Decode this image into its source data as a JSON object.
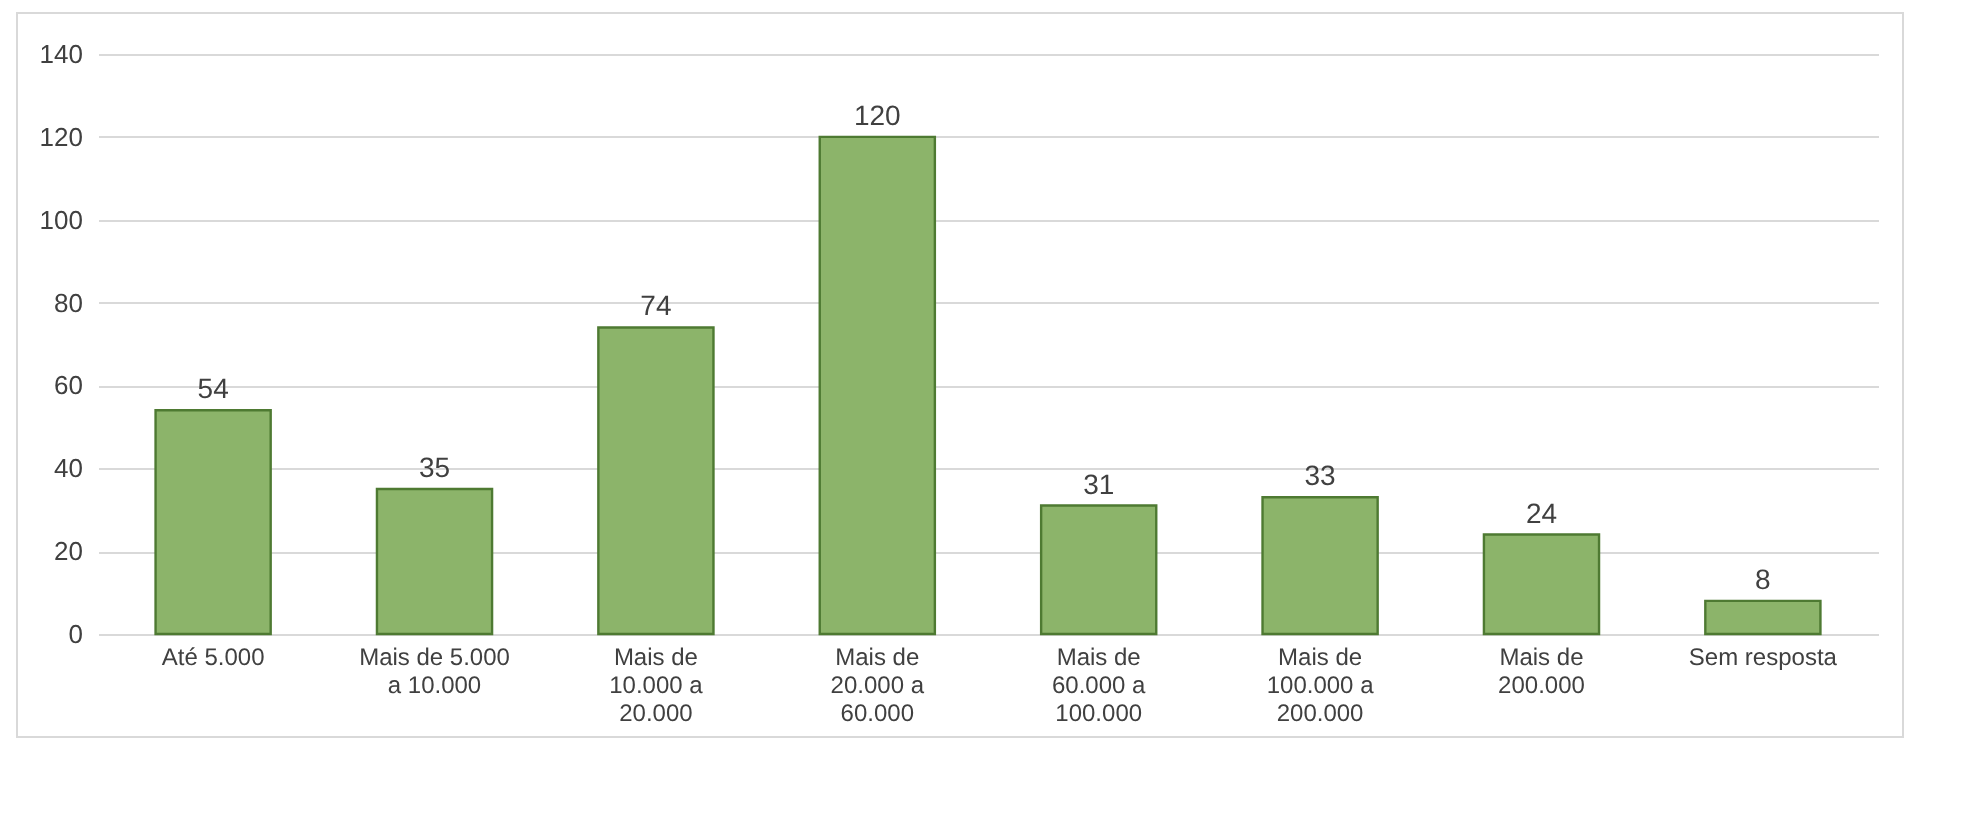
{
  "chart_data": {
    "type": "bar",
    "categories": [
      "Até 5.000",
      "Mais de 5.000 a 10.000",
      "Mais de 10.000 a 20.000",
      "Mais de 20.000 a 60.000",
      "Mais de 60.000 a 100.000",
      "Mais de 100.000 a 200.000",
      "Mais de 200.000",
      "Sem resposta"
    ],
    "values": [
      54,
      35,
      74,
      120,
      31,
      33,
      24,
      8
    ],
    "color": "#8cb46a",
    "ylim": [
      0,
      140
    ],
    "yticks": [
      0,
      20,
      40,
      60,
      80,
      100,
      120,
      140
    ],
    "grid": "y",
    "data_labels": true
  }
}
